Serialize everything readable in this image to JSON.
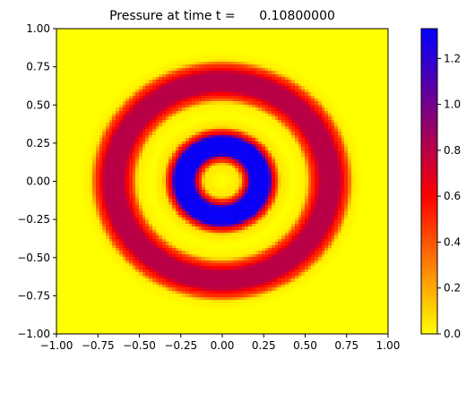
{
  "chart_data": {
    "type": "heatmap",
    "title": "Pressure at time t =      0.10800000",
    "xlabel": "",
    "ylabel": "",
    "xlim": [
      -1.0,
      1.0
    ],
    "ylim": [
      -1.0,
      1.0
    ],
    "x_ticks": [
      "−1.00",
      "−0.75",
      "−0.50",
      "−0.25",
      "0.00",
      "0.25",
      "0.50",
      "0.75",
      "1.00"
    ],
    "y_ticks": [
      "−1.00",
      "−0.75",
      "−0.50",
      "−0.25",
      "0.00",
      "0.25",
      "0.50",
      "0.75",
      "1.00"
    ],
    "grid": false,
    "field": {
      "description_units": "pressure",
      "pattern": "radially symmetric concentric rings centered at (0,0)",
      "radial_profile": [
        {
          "r": 0.0,
          "value": 0.0
        },
        {
          "r": 0.1,
          "value": 0.05
        },
        {
          "r": 0.14,
          "value": 0.55
        },
        {
          "r": 0.18,
          "value": 1.3
        },
        {
          "r": 0.28,
          "value": 1.3
        },
        {
          "r": 0.32,
          "value": 0.55
        },
        {
          "r": 0.36,
          "value": 0.05
        },
        {
          "r": 0.43,
          "value": 0.0
        },
        {
          "r": 0.5,
          "value": 0.03
        },
        {
          "r": 0.55,
          "value": 0.5
        },
        {
          "r": 0.6,
          "value": 0.8
        },
        {
          "r": 0.7,
          "value": 0.8
        },
        {
          "r": 0.75,
          "value": 0.5
        },
        {
          "r": 0.8,
          "value": 0.03
        },
        {
          "r": 0.86,
          "value": 0.0
        },
        {
          "r": 1.5,
          "value": 0.0
        }
      ],
      "grid_resolution": 100
    },
    "colorbar": {
      "min": 0.0,
      "max": 1.33,
      "ticks": [
        0.0,
        0.2,
        0.4,
        0.6,
        0.8,
        1.0,
        1.2
      ],
      "tick_labels": [
        "0.0",
        "0.2",
        "0.4",
        "0.6",
        "0.8",
        "1.0",
        "1.2"
      ],
      "colormap_stops": [
        {
          "value": 0.0,
          "color": "#ffff00"
        },
        {
          "value": 0.6,
          "color": "#ff0000"
        },
        {
          "value": 1.33,
          "color": "#0000ff"
        }
      ]
    }
  }
}
